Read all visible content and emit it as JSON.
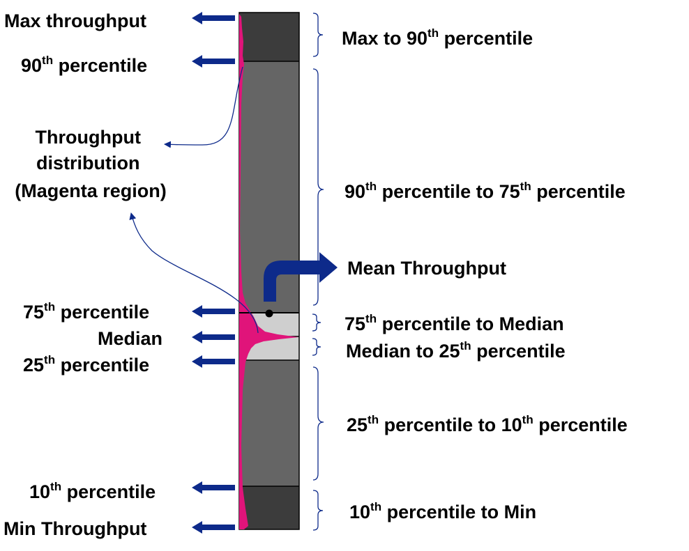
{
  "colors": {
    "dark_band": "#3c3c3c",
    "mid_band": "#656565",
    "light_band": "#cfcfcf",
    "distribution": "#e0147a",
    "arrow": "#0d2a8a"
  },
  "left_labels": {
    "max_throughput": "Max throughput",
    "p90": {
      "num": "90",
      "suffix": "th",
      "rest": " percentile"
    },
    "distribution": [
      "Throughput",
      "distribution",
      "(Magenta region)"
    ],
    "p75": {
      "num": "75",
      "suffix": "th",
      "rest": " percentile"
    },
    "median": "Median",
    "p25": {
      "num": "25",
      "suffix": "th",
      "rest": " percentile"
    },
    "p10": {
      "num": "10",
      "suffix": "th",
      "rest": " percentile"
    },
    "min_throughput": "Min Throughput"
  },
  "right_labels": {
    "max_to_90": {
      "a": "Max to 90",
      "a_sup": "th",
      "b": " percentile"
    },
    "p90_to_75": {
      "a": "90",
      "a_sup": "th",
      "b": " percentile to 75",
      "b_sup": "th",
      "c": " percentile"
    },
    "mean": "Mean Throughput",
    "p75_to_median": {
      "a": "75",
      "a_sup": "th",
      "b": " percentile to Median"
    },
    "median_to_25": {
      "a": "Median to 25",
      "a_sup": "th",
      "b": " percentile"
    },
    "p25_to_10": {
      "a": "25",
      "a_sup": "th",
      "b": " percentile to 10",
      "b_sup": "th",
      "c": " percentile"
    },
    "p10_to_min": {
      "a": "10",
      "a_sup": "th",
      "b": " percentile to Min"
    }
  }
}
